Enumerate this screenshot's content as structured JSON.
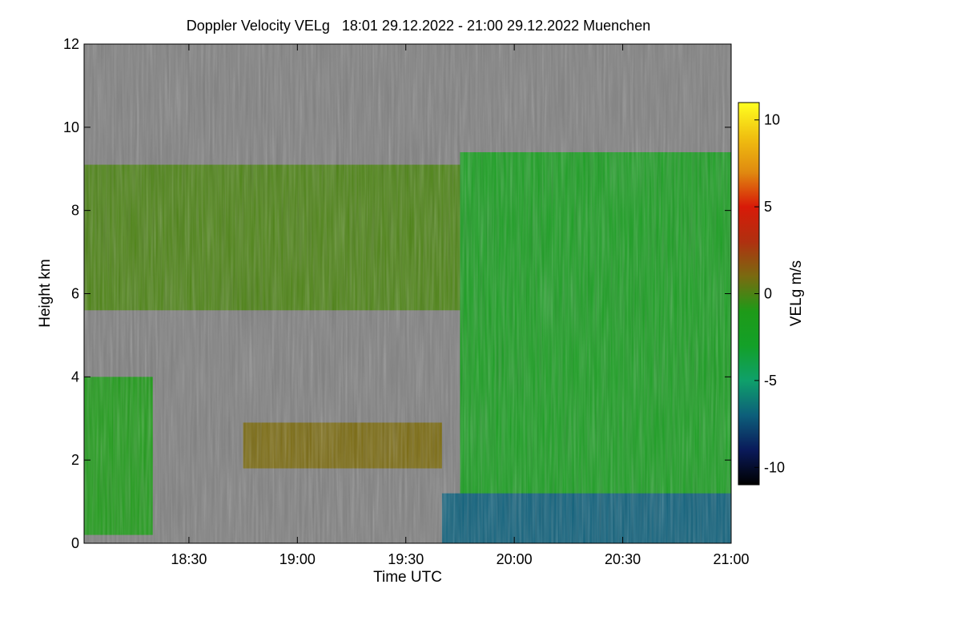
{
  "chart_data": {
    "type": "heatmap",
    "title": "Doppler Velocity VELg   18:01 29.12.2022 - 21:00 29.12.2022 Muenchen",
    "xlabel": "Time UTC",
    "ylabel": "Height km",
    "colorbar_label": "VELg m/s",
    "xlim": [
      "18:01",
      "21:00"
    ],
    "x_ticks": [
      "18:30",
      "19:00",
      "19:30",
      "20:00",
      "20:30",
      "21:00"
    ],
    "ylim": [
      0,
      12
    ],
    "y_ticks": [
      0,
      2,
      4,
      6,
      8,
      10,
      12
    ],
    "color_range": [
      -11,
      11
    ],
    "colorbar_ticks": [
      -10,
      -5,
      0,
      5,
      10
    ],
    "colormap": [
      "#000000",
      "#0a1a5a",
      "#0d5f7a",
      "#0fa06a",
      "#13a028",
      "#1e9a18",
      "#7a6a10",
      "#b03010",
      "#d81a08",
      "#e08a10",
      "#f0c010",
      "#ffff20"
    ],
    "no_data_color": "#808080",
    "cloud_regions": [
      {
        "from": "18:01",
        "to": "19:45",
        "base_km": 5.6,
        "top_km": 9.1,
        "velocity_ms": 0
      },
      {
        "from": "19:45",
        "to": "21:00",
        "base_km": 0.5,
        "top_km": 9.4,
        "velocity_ms": -2
      },
      {
        "from": "18:01",
        "to": "18:20",
        "base_km": 0.2,
        "top_km": 4.0,
        "velocity_ms": -1
      },
      {
        "from": "18:45",
        "to": "19:40",
        "base_km": 1.8,
        "top_km": 2.9,
        "velocity_ms": 1
      },
      {
        "from": "19:40",
        "to": "21:00",
        "base_km": 0.0,
        "top_km": 1.2,
        "velocity_ms": -7
      }
    ]
  }
}
